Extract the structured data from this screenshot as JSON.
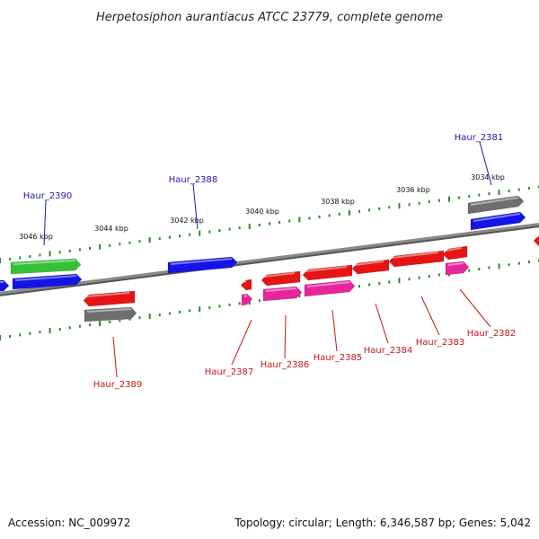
{
  "title": "Herpetosiphon aurantiacus ATCC 23779, complete genome",
  "footer": {
    "accession": "Accession: NC_009972",
    "summary": "Topology: circular; Length: 6,346,587 bp; Genes: 5,042"
  },
  "colors": {
    "backbone": "#8a8a8a",
    "tick": "#2a8a2a",
    "forward_label": "#1a1aa8",
    "reverse_label": "#c81414",
    "blue_gene": "#1414e6",
    "green_gene": "#35c135",
    "red_gene": "#e61414",
    "pink_gene": "#e6269a",
    "gray_gene": "#6e6e6e"
  },
  "scale_labels": [
    "3034 kbp",
    "3036 kbp",
    "3038 kbp",
    "3040 kbp",
    "3042 kbp",
    "3044 kbp",
    "3046 kbp"
  ],
  "gene_labels": {
    "forward": [
      "Haur_2381",
      "Haur_2388",
      "Haur_2390"
    ],
    "reverse": [
      "Haur_2382",
      "Haur_2383",
      "Haur_2384",
      "Haur_2385",
      "Haur_2386",
      "Haur_2387",
      "Haur_2389"
    ]
  }
}
